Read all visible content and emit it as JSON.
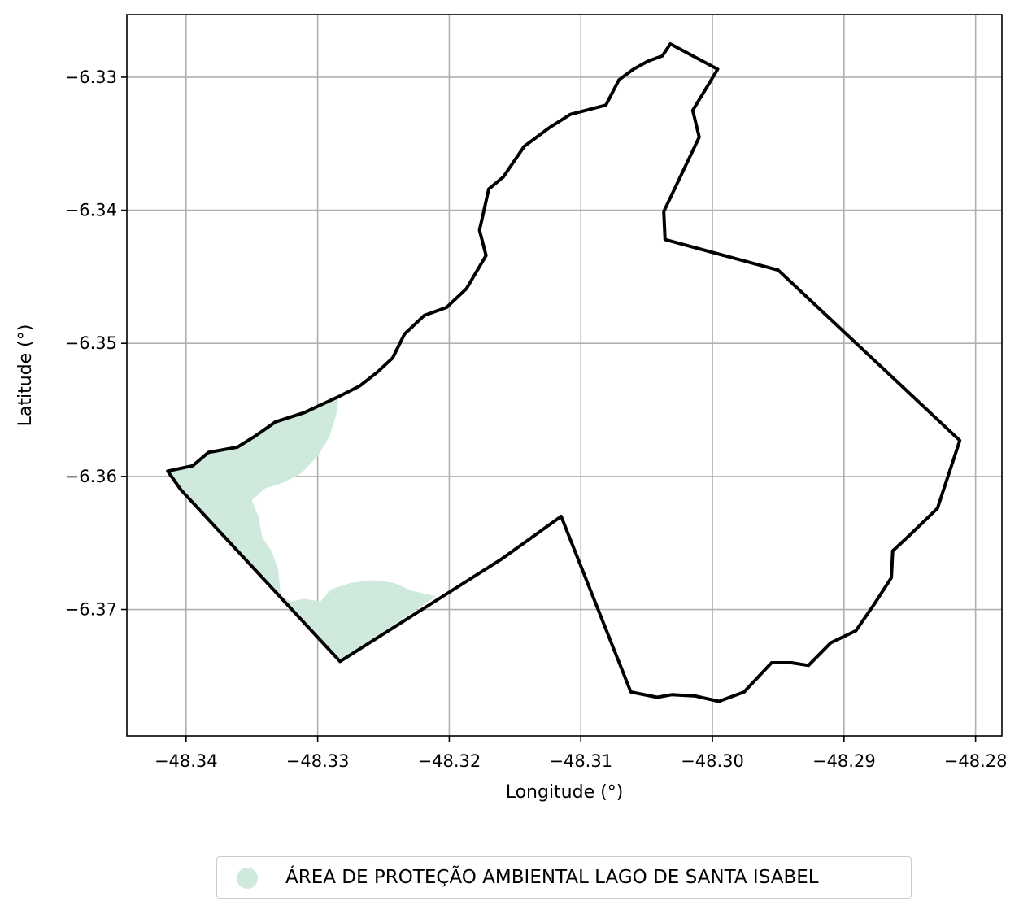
{
  "chart_data": {
    "type": "map",
    "xlabel": "Longitude (°)",
    "ylabel": "Latitude (°)",
    "xlim": [
      -48.3445,
      -48.278
    ],
    "ylim": [
      -6.3795,
      -6.3253
    ],
    "x_ticks": [
      -48.34,
      -48.33,
      -48.32,
      -48.31,
      -48.3,
      -48.29,
      -48.28
    ],
    "x_tick_labels": [
      "−48.34",
      "−48.33",
      "−48.32",
      "−48.31",
      "−48.30",
      "−48.29",
      "−48.28"
    ],
    "y_ticks": [
      -6.33,
      -6.34,
      -6.35,
      -6.36,
      -6.37
    ],
    "y_tick_labels": [
      "−6.33",
      "−6.34",
      "−6.35",
      "−6.36",
      "−6.37"
    ],
    "grid": true,
    "legend_position": "bottom-center",
    "colors": {
      "boundary": "#000000",
      "protected_area_fill": "#cfeadc",
      "grid": "#b0b0b0"
    },
    "boundary": [
      [
        -48.3414,
        -6.3596
      ],
      [
        -48.3395,
        -6.3592
      ],
      [
        -48.3383,
        -6.3582
      ],
      [
        -48.3361,
        -6.3578
      ],
      [
        -48.3348,
        -6.357
      ],
      [
        -48.3332,
        -6.3559
      ],
      [
        -48.331,
        -6.3552
      ],
      [
        -48.3284,
        -6.354
      ],
      [
        -48.3268,
        -6.3532
      ],
      [
        -48.3255,
        -6.3522
      ],
      [
        -48.3243,
        -6.3511
      ],
      [
        -48.3234,
        -6.3493
      ],
      [
        -48.3219,
        -6.3479
      ],
      [
        -48.3202,
        -6.3473
      ],
      [
        -48.3187,
        -6.3459
      ],
      [
        -48.3172,
        -6.3434
      ],
      [
        -48.3177,
        -6.3415
      ],
      [
        -48.317,
        -6.3384
      ],
      [
        -48.3159,
        -6.3375
      ],
      [
        -48.3143,
        -6.3352
      ],
      [
        -48.3124,
        -6.3338
      ],
      [
        -48.3108,
        -6.3328
      ],
      [
        -48.3081,
        -6.3321
      ],
      [
        -48.3071,
        -6.3302
      ],
      [
        -48.306,
        -6.3294
      ],
      [
        -48.3049,
        -6.3288
      ],
      [
        -48.3038,
        -6.3284
      ],
      [
        -48.3032,
        -6.3275
      ],
      [
        -48.2996,
        -6.3294
      ],
      [
        -48.3015,
        -6.3325
      ],
      [
        -48.301,
        -6.3345
      ],
      [
        -48.3037,
        -6.3401
      ],
      [
        -48.3036,
        -6.3422
      ],
      [
        -48.295,
        -6.3445
      ],
      [
        -48.2812,
        -6.3573
      ],
      [
        -48.2829,
        -6.3624
      ],
      [
        -48.2851,
        -6.3645
      ],
      [
        -48.2863,
        -6.3656
      ],
      [
        -48.2864,
        -6.3676
      ],
      [
        -48.2877,
        -6.3696
      ],
      [
        -48.2891,
        -6.3716
      ],
      [
        -48.291,
        -6.3725
      ],
      [
        -48.2927,
        -6.3742
      ],
      [
        -48.294,
        -6.374
      ],
      [
        -48.2955,
        -6.374
      ],
      [
        -48.2976,
        -6.3762
      ],
      [
        -48.2995,
        -6.3769
      ],
      [
        -48.3013,
        -6.3765
      ],
      [
        -48.3031,
        -6.3764
      ],
      [
        -48.3042,
        -6.3766
      ],
      [
        -48.3062,
        -6.3762
      ],
      [
        -48.3115,
        -6.363
      ],
      [
        -48.316,
        -6.3662
      ],
      [
        -48.3283,
        -6.3739
      ],
      [
        -48.3404,
        -6.361
      ],
      [
        -48.3414,
        -6.3596
      ]
    ],
    "protected_area": [
      [
        -48.3414,
        -6.3596
      ],
      [
        -48.3395,
        -6.3592
      ],
      [
        -48.3383,
        -6.3582
      ],
      [
        -48.3361,
        -6.3578
      ],
      [
        -48.3348,
        -6.357
      ],
      [
        -48.3332,
        -6.3559
      ],
      [
        -48.331,
        -6.3552
      ],
      [
        -48.3284,
        -6.354
      ],
      [
        -48.3286,
        -6.3554
      ],
      [
        -48.3291,
        -6.357
      ],
      [
        -48.33,
        -6.3585
      ],
      [
        -48.3313,
        -6.3598
      ],
      [
        -48.3327,
        -6.3605
      ],
      [
        -48.334,
        -6.3609
      ],
      [
        -48.335,
        -6.3618
      ],
      [
        -48.3345,
        -6.363
      ],
      [
        -48.3342,
        -6.3646
      ],
      [
        -48.3335,
        -6.3656
      ],
      [
        -48.333,
        -6.367
      ],
      [
        -48.3328,
        -6.369
      ],
      [
        -48.332,
        -6.3694
      ],
      [
        -48.331,
        -6.3692
      ],
      [
        -48.3298,
        -6.3694
      ],
      [
        -48.329,
        -6.3685
      ],
      [
        -48.3275,
        -6.368
      ],
      [
        -48.3258,
        -6.3678
      ],
      [
        -48.3242,
        -6.368
      ],
      [
        -48.3228,
        -6.3686
      ],
      [
        -48.321,
        -6.369
      ],
      [
        -48.3283,
        -6.3739
      ],
      [
        -48.3404,
        -6.361
      ]
    ]
  },
  "legend": {
    "label": "ÁREA DE PROTEÇÃO AMBIENTAL LAGO DE SANTA ISABEL",
    "marker": "circle",
    "color": "#cfeadc"
  }
}
